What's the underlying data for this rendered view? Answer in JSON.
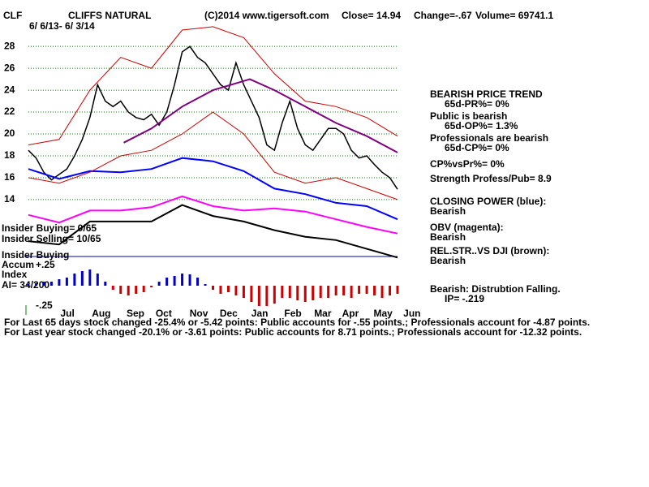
{
  "chart_data": [
    {
      "type": "line",
      "ticker": "CLF",
      "title": "CLIFFS NATURAL",
      "copyright": "(C)2014 www.tigersoft.com",
      "close": "Close=  14.94",
      "change": "Change=-.67",
      "volume": "Volume= 69741.1",
      "date_range": "6/ 6/13- 6/ 3/14",
      "xlim": [
        0,
        12
      ],
      "xticks": [
        {
          "value": 1.27,
          "label": "Jul"
        },
        {
          "value": 2.37,
          "label": "Aug"
        },
        {
          "value": 3.48,
          "label": "Sep"
        },
        {
          "value": 4.4,
          "label": "Oct"
        },
        {
          "value": 5.54,
          "label": "Nov"
        },
        {
          "value": 6.51,
          "label": "Dec"
        },
        {
          "value": 7.52,
          "label": "Jan"
        },
        {
          "value": 8.6,
          "label": "Feb"
        },
        {
          "value": 9.57,
          "label": "Mar"
        },
        {
          "value": 10.47,
          "label": "Apr"
        },
        {
          "value": 11.53,
          "label": "May"
        },
        {
          "value": 12.47,
          "label": "Jun"
        }
      ],
      "ylim": [
        4.2,
        31.5
      ],
      "yticks": [
        14,
        16,
        18,
        20,
        22,
        24,
        26,
        28
      ],
      "grid": true,
      "grid_color": "#008000",
      "series": [
        {
          "color": "#000000",
          "x": [
            0,
            0.25,
            0.5,
            0.75,
            1,
            1.25,
            1.5,
            1.75,
            2,
            2.25,
            2.5,
            2.75,
            3,
            3.25,
            3.5,
            3.75,
            4,
            4.25,
            4.5,
            4.75,
            5,
            5.25,
            5.5,
            5.75,
            6,
            6.25,
            6.5,
            6.75,
            7,
            7.25,
            7.5,
            7.75,
            8,
            8.25,
            8.5,
            8.75,
            9,
            9.25,
            9.5,
            9.75,
            10,
            10.25,
            10.5,
            10.75,
            11,
            11.25,
            11.5,
            11.75,
            12
          ],
          "values": [
            18.5,
            17.8,
            16.5,
            15.8,
            16.3,
            16.8,
            18,
            19.5,
            21.5,
            24.5,
            23,
            22.5,
            23,
            22,
            21.5,
            21.3,
            21.8,
            20.8,
            22,
            24.5,
            27.5,
            28,
            27,
            26.5,
            25.5,
            24.5,
            24,
            26.5,
            24.5,
            23,
            21.5,
            19,
            18.5,
            21,
            23,
            20.5,
            19,
            18.5,
            19.5,
            20.5,
            20.5,
            20,
            18.5,
            17.8,
            18,
            17.2,
            16.5,
            16,
            14.94
          ]
        },
        {
          "name": "CLOSING POWER (blue):",
          "status": "Bearish",
          "color": "#0000ff",
          "x": [
            0,
            1,
            2,
            3,
            4,
            5,
            6,
            7,
            8,
            9,
            10,
            11,
            12
          ],
          "values": [
            16.8,
            15.9,
            16.6,
            16.5,
            16.8,
            17.8,
            17.5,
            16.6,
            15,
            14.5,
            13.7,
            13.4,
            12.2
          ]
        },
        {
          "name": "OBV (magenta):",
          "status": "Bearish",
          "color": "#ff00ff",
          "x": [
            0,
            1,
            2,
            3,
            4,
            5,
            6,
            7,
            8,
            9,
            10,
            11,
            12
          ],
          "values": [
            12.6,
            11.9,
            13,
            13,
            13.3,
            14.3,
            13.4,
            13,
            13.2,
            12.9,
            12.2,
            11.5,
            10.9
          ]
        },
        {
          "name": "REL.STR..VS DJI (brown):",
          "status": "Bearish",
          "color": "#000000",
          "x": [
            0,
            1,
            2,
            3,
            4,
            5,
            6,
            7,
            8,
            9,
            10,
            11,
            12
          ],
          "values": [
            10.2,
            9.9,
            12,
            12,
            12,
            13.5,
            12.5,
            12,
            11.2,
            10.6,
            10.3,
            9.5,
            8.7
          ]
        },
        {
          "color": "#800080",
          "x": [
            3.1,
            4,
            5,
            6,
            7.2,
            8,
            9,
            10,
            11,
            12
          ],
          "values": [
            19.2,
            20.5,
            22.5,
            24,
            25,
            24,
            22.5,
            21,
            19.8,
            18.3
          ]
        },
        {
          "color": "#cc0000",
          "x": [
            0,
            1,
            2,
            3,
            4,
            5,
            6,
            7,
            8,
            9,
            10,
            11,
            12
          ],
          "values": [
            19,
            19.5,
            24,
            27,
            26,
            29.5,
            29.8,
            28.8,
            25.5,
            23,
            22.5,
            21.5,
            19.8
          ]
        },
        {
          "color": "#cc0000",
          "x": [
            0,
            1,
            2,
            3,
            4,
            5,
            6,
            7,
            8,
            9,
            10,
            11,
            12
          ],
          "values": [
            16,
            15.5,
            16.5,
            18,
            18.5,
            20,
            22,
            20,
            16.5,
            15.5,
            16,
            15,
            14
          ]
        }
      ],
      "annotations": [
        "BEARISH PRICE TREND",
        "65d-PR%= 0%",
        "Public is bearish",
        "65d-OP%= 1.3%",
        "Professionals are bearish",
        "65d-CP%= 0%",
        "CP%vsPr%=  0%",
        "Strength Profess/Pub= 8.9",
        "Bearish: Distrubtion Falling.",
        "IP= -.219"
      ]
    },
    {
      "type": "bar",
      "labels": [
        "Insider Buying= 0/65",
        "Insider Selling= 10/65",
        "Insider Buying",
        "Accum",
        "Index",
        "AI= 34/200"
      ],
      "xlim": [
        0,
        12
      ],
      "ylim": [
        -0.3,
        0.3
      ],
      "yticks": [
        {
          "value": 0.25,
          "label": "+.25"
        },
        {
          "value": -0.25,
          "label": "-.25"
        }
      ],
      "pos_color": "#0000cc",
      "neg_color": "#cc0000",
      "x": [
        0,
        0.25,
        0.5,
        0.75,
        1,
        1.25,
        1.5,
        1.75,
        2,
        2.25,
        2.5,
        2.75,
        3,
        3.25,
        3.5,
        3.75,
        4,
        4.25,
        4.5,
        4.75,
        5,
        5.25,
        5.5,
        5.75,
        6,
        6.25,
        6.5,
        6.75,
        7,
        7.25,
        7.5,
        7.75,
        8,
        8.25,
        8.5,
        8.75,
        9,
        9.25,
        9.5,
        9.75,
        10,
        10.25,
        10.5,
        10.75,
        11,
        11.25,
        11.5,
        11.75,
        12
      ],
      "values": [
        0.02,
        0.03,
        0.05,
        0.05,
        0.08,
        0.1,
        0.15,
        0.18,
        0.2,
        0.15,
        0.05,
        -0.05,
        -0.1,
        -0.12,
        -0.1,
        -0.08,
        -0.02,
        0.05,
        0.1,
        0.12,
        0.15,
        0.14,
        0.1,
        0.02,
        -0.05,
        -0.1,
        -0.08,
        -0.12,
        -0.15,
        -0.2,
        -0.25,
        -0.25,
        -0.22,
        -0.15,
        -0.15,
        -0.18,
        -0.2,
        -0.18,
        -0.15,
        -0.15,
        -0.12,
        -0.12,
        -0.15,
        -0.1,
        -0.1,
        -0.12,
        -0.15,
        -0.12,
        -0.1
      ]
    }
  ],
  "footer": [
    "For Last 65 days stock changed -25.4% or -5.42 points:  Public accounts for -.55 points.;  Professionals account for -4.87 points.",
    "For Last year stock changed -20.1% or -3.61 points:  Public accounts for  8.71 points.;  Professionals account for -12.32 points."
  ]
}
